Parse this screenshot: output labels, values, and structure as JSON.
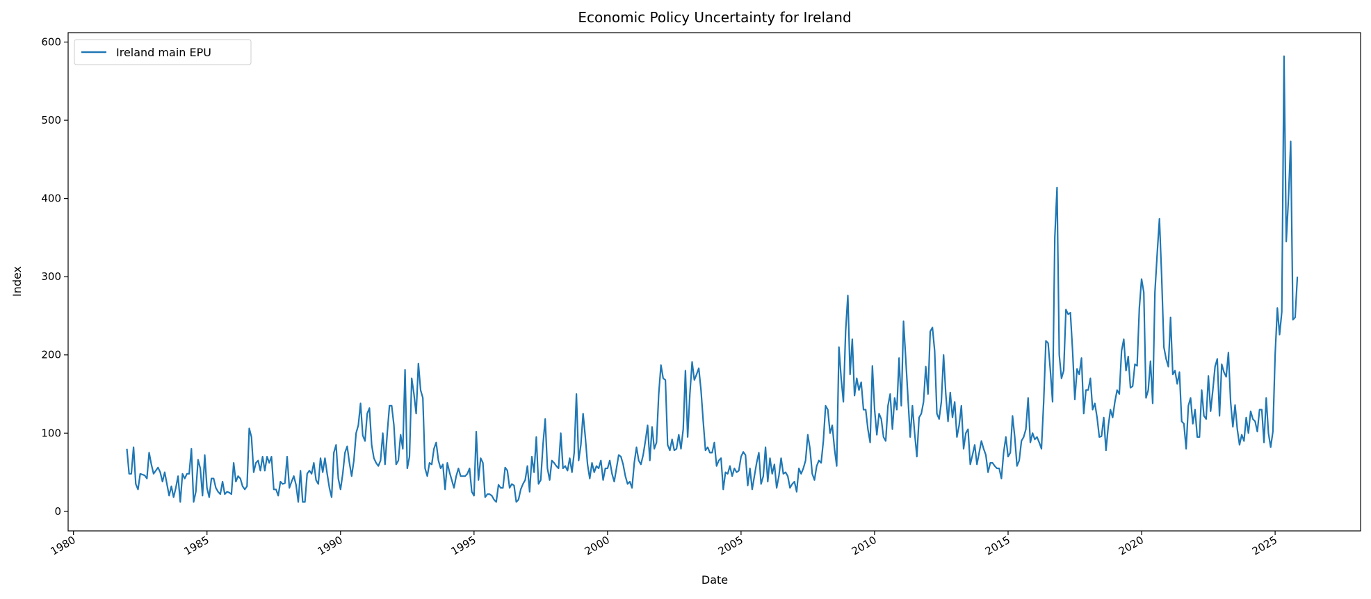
{
  "chart_data": {
    "type": "line",
    "title": "Economic Policy Uncertainty for Ireland",
    "xlabel": "Date",
    "ylabel": "Index",
    "ylim": [
      -25,
      612
    ],
    "xlim": [
      1979.8,
      2028.2
    ],
    "yticks": [
      "0",
      "100",
      "200",
      "300",
      "400",
      "500",
      "600"
    ],
    "xticks": [
      "1980",
      "1985",
      "1990",
      "1995",
      "2000",
      "2005",
      "2010",
      "2015",
      "2020",
      "2025"
    ],
    "grid": false,
    "legend_position": "top-left",
    "frequency": "monthly",
    "series": [
      {
        "name": "Ireland main EPU",
        "color": "#1f77b4",
        "monthly": [
          {
            "year": 1982,
            "values": [
              80,
              48,
              48,
              82,
              35,
              28,
              48,
              47,
              46,
              42,
              75,
              60
            ]
          },
          {
            "year": 1983,
            "values": [
              48,
              52,
              56,
              50,
              38,
              50,
              35,
              20,
              32,
              18,
              30,
              45
            ]
          },
          {
            "year": 1984,
            "values": [
              12,
              48,
              42,
              48,
              48,
              80,
              12,
              25,
              66,
              55,
              20,
              72
            ]
          },
          {
            "year": 1985,
            "values": [
              30,
              18,
              42,
              42,
              30,
              25,
              22,
              38,
              22,
              25,
              24,
              22
            ]
          },
          {
            "year": 1986,
            "values": [
              62,
              38,
              45,
              42,
              32,
              28,
              32,
              106,
              95,
              50,
              62,
              65
            ]
          },
          {
            "year": 1987,
            "values": [
              52,
              70,
              52,
              70,
              62,
              70,
              28,
              28,
              20,
              38,
              35,
              36
            ]
          },
          {
            "year": 1988,
            "values": [
              70,
              30,
              38,
              45,
              34,
              12,
              52,
              12,
              12,
              48,
              52,
              48
            ]
          },
          {
            "year": 1989,
            "values": [
              62,
              40,
              35,
              68,
              50,
              68,
              48,
              30,
              18,
              75,
              85,
              42
            ]
          },
          {
            "year": 1990,
            "values": [
              28,
              48,
              75,
              83,
              62,
              45,
              65,
              100,
              110,
              138,
              97,
              90
            ]
          },
          {
            "year": 1991,
            "values": [
              125,
              132,
              85,
              68,
              62,
              58,
              65,
              100,
              60,
              100,
              135,
              135
            ]
          },
          {
            "year": 1992,
            "values": [
              110,
              60,
              65,
              98,
              80,
              181,
              55,
              70,
              170,
              150,
              125,
              189
            ]
          },
          {
            "year": 1993,
            "values": [
              155,
              145,
              55,
              45,
              62,
              60,
              80,
              88,
              65,
              55,
              60,
              28
            ]
          },
          {
            "year": 1994,
            "values": [
              62,
              50,
              40,
              30,
              45,
              55,
              45,
              45,
              45,
              48,
              55,
              25
            ]
          },
          {
            "year": 1995,
            "values": [
              20,
              102,
              40,
              68,
              62,
              18,
              22,
              22,
              20,
              15,
              12,
              34
            ]
          },
          {
            "year": 1996,
            "values": [
              30,
              30,
              56,
              52,
              30,
              35,
              33,
              12,
              15,
              28,
              35,
              40
            ]
          },
          {
            "year": 1997,
            "values": [
              58,
              25,
              70,
              50,
              95,
              35,
              40,
              85,
              118,
              55,
              40,
              65
            ]
          },
          {
            "year": 1998,
            "values": [
              62,
              58,
              55,
              100,
              55,
              58,
              52,
              68,
              50,
              75,
              150,
              65
            ]
          },
          {
            "year": 1999,
            "values": [
              85,
              125,
              95,
              60,
              42,
              62,
              50,
              58,
              55,
              65,
              40,
              55
            ]
          },
          {
            "year": 2000,
            "values": [
              55,
              65,
              48,
              38,
              55,
              72,
              70,
              60,
              45,
              35,
              38,
              30
            ]
          },
          {
            "year": 2001,
            "values": [
              62,
              82,
              65,
              60,
              72,
              90,
              110,
              65,
              108,
              80,
              88,
              150
            ]
          },
          {
            "year": 2002,
            "values": [
              187,
              170,
              168,
              85,
              78,
              92,
              78,
              80,
              98,
              80,
              105,
              180
            ]
          },
          {
            "year": 2003,
            "values": [
              95,
              150,
              191,
              168,
              175,
              183,
              155,
              115,
              78,
              82,
              75,
              75
            ]
          },
          {
            "year": 2004,
            "values": [
              88,
              58,
              65,
              68,
              28,
              50,
              48,
              58,
              45,
              55,
              50,
              52
            ]
          },
          {
            "year": 2005,
            "values": [
              70,
              76,
              72,
              33,
              55,
              28,
              45,
              62,
              75,
              35,
              45,
              82
            ]
          },
          {
            "year": 2006,
            "values": [
              38,
              68,
              48,
              60,
              30,
              45,
              68,
              48,
              50,
              45,
              30,
              35
            ]
          },
          {
            "year": 2007,
            "values": [
              38,
              25,
              55,
              48,
              55,
              65,
              98,
              80,
              48,
              40,
              58,
              65
            ]
          },
          {
            "year": 2008,
            "values": [
              62,
              90,
              135,
              130,
              100,
              110,
              80,
              58,
              210,
              170,
              140,
              230
            ]
          },
          {
            "year": 2009,
            "values": [
              276,
              175,
              220,
              148,
              170,
              155,
              165,
              130,
              130,
              105,
              88,
              186
            ]
          },
          {
            "year": 2010,
            "values": [
              130,
              98,
              125,
              118,
              95,
              90,
              135,
              150,
              105,
              145,
              130,
              196
            ]
          },
          {
            "year": 2011,
            "values": [
              135,
              243,
              195,
              145,
              95,
              135,
              100,
              70,
              120,
              125,
              140,
              185
            ]
          },
          {
            "year": 2012,
            "values": [
              150,
              230,
              235,
              205,
              125,
              118,
              140,
              200,
              150,
              115,
              152,
              120
            ]
          },
          {
            "year": 2013,
            "values": [
              140,
              95,
              110,
              135,
              80,
              100,
              105,
              60,
              72,
              85,
              60,
              75
            ]
          },
          {
            "year": 2014,
            "values": [
              90,
              80,
              72,
              50,
              62,
              62,
              58,
              55,
              55,
              42,
              75,
              95
            ]
          },
          {
            "year": 2015,
            "values": [
              70,
              75,
              122,
              95,
              58,
              65,
              90,
              95,
              105,
              145,
              88,
              100
            ]
          },
          {
            "year": 2016,
            "values": [
              92,
              95,
              88,
              80,
              140,
              218,
              215,
              180,
              140,
              350,
              414,
              200
            ]
          },
          {
            "year": 2017,
            "values": [
              170,
              180,
              258,
              252,
              254,
              205,
              143,
              182,
              175,
              196,
              125,
              155
            ]
          },
          {
            "year": 2018,
            "values": [
              155,
              170,
              130,
              138,
              120,
              95,
              96,
              120,
              78,
              108,
              130,
              120
            ]
          },
          {
            "year": 2019,
            "values": [
              140,
              155,
              150,
              205,
              220,
              180,
              198,
              158,
              160,
              188,
              186,
              260
            ]
          },
          {
            "year": 2020,
            "values": [
              297,
              280,
              145,
              155,
              192,
              138,
              280,
              330,
              374,
              300,
              210,
              195
            ]
          },
          {
            "year": 2021,
            "values": [
              185,
              248,
              175,
              180,
              163,
              178,
              115,
              112,
              80,
              135,
              145,
              112
            ]
          },
          {
            "year": 2022,
            "values": [
              130,
              95,
              95,
              155,
              122,
              118,
              173,
              128,
              155,
              185,
              195,
              122
            ]
          },
          {
            "year": 2023,
            "values": [
              188,
              178,
              172,
              203,
              140,
              108,
              136,
              105,
              85,
              98,
              90,
              120
            ]
          },
          {
            "year": 2024,
            "values": [
              100,
              128,
              118,
              115,
              102,
              130,
              130,
              88,
              145,
              100,
              82,
              102
            ]
          },
          {
            "year": 2025,
            "values": [
              200,
              260,
              226,
              255,
              582,
              345,
              400,
              473,
              245,
              248,
              300
            ]
          }
        ]
      }
    ]
  }
}
